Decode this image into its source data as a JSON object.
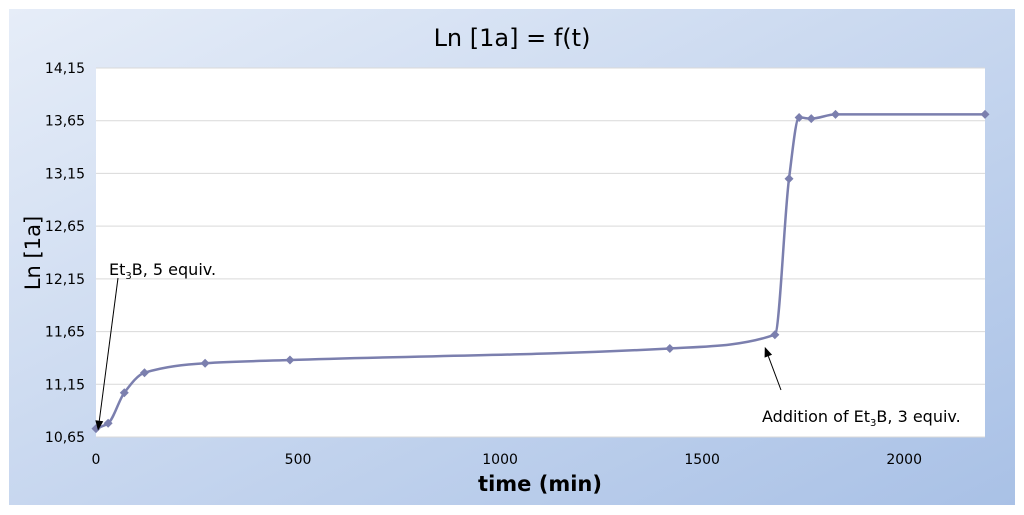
{
  "chart_data": {
    "type": "line",
    "title": "Ln [1a] = f(t)",
    "xlabel": "time (min)",
    "ylabel": "Ln [1a]",
    "xlim": [
      0,
      2200
    ],
    "ylim": [
      10.65,
      14.15
    ],
    "x_ticks": [
      0,
      500,
      1000,
      1500,
      2000
    ],
    "y_ticks": [
      10.65,
      11.15,
      11.65,
      12.15,
      12.65,
      13.15,
      13.65,
      14.15
    ],
    "y_tick_labels": [
      "10,65",
      "11,15",
      "11,65",
      "12,15",
      "12,65",
      "13,15",
      "13,65",
      "14,15"
    ],
    "grid": "horizontal",
    "legend": "none",
    "series": [
      {
        "marker": "diamond",
        "smooth": true,
        "color": "#7B7FAE",
        "points": [
          [
            0,
            10.73
          ],
          [
            30,
            10.78
          ],
          [
            70,
            11.07
          ],
          [
            120,
            11.26
          ],
          [
            270,
            11.35
          ],
          [
            480,
            11.38
          ],
          [
            1420,
            11.49
          ],
          [
            1680,
            11.62
          ],
          [
            1715,
            13.1
          ],
          [
            1740,
            13.68
          ],
          [
            1770,
            13.67
          ],
          [
            1830,
            13.71
          ],
          [
            2200,
            13.71
          ]
        ]
      }
    ],
    "annotations": [
      {
        "text_parts": [
          "Et",
          "3",
          "B, 5 equiv."
        ],
        "arrow_to": [
          0,
          10.71
        ]
      },
      {
        "text_parts": [
          "Addition of Et",
          "3",
          "B, 3 equiv."
        ],
        "arrow_to": [
          1665,
          11.6
        ]
      }
    ]
  },
  "colors": {
    "background_gradient": [
      "#E6EDF8",
      "#A9C1E6"
    ],
    "plot_area": "#FFFFFF",
    "gridline": "#D9D9D9",
    "series": "#7B7FAE",
    "text": "#000000"
  }
}
